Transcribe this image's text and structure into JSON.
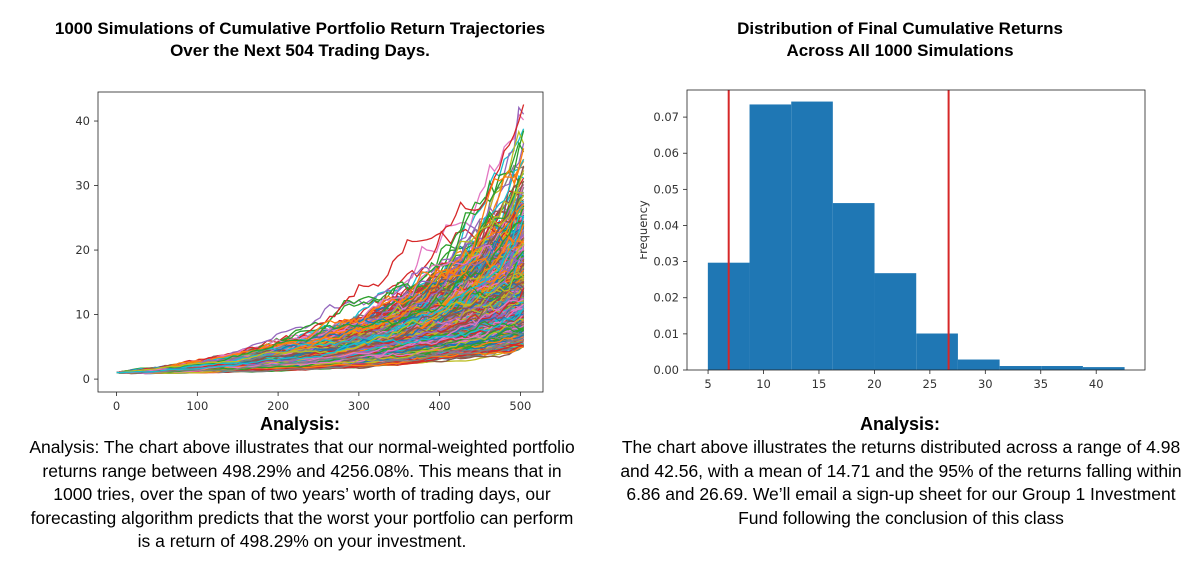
{
  "left_panel": {
    "title_line1": "1000 Simulations of Cumulative Portfolio Return Trajectories",
    "title_line2": "Over the Next 504 Trading Days.",
    "analysis_heading": "Analysis:",
    "analysis_body": "Analysis: The chart above illustrates that our normal-weighted portfolio returns range between 498.29% and 4256.08%. This means that in 1000 tries, over the span of two years’ worth of trading days, our forecasting algorithm predicts that the worst your portfolio can perform is a return of 498.29% on your investment."
  },
  "right_panel": {
    "title_line1": "Distribution of Final Cumulative Returns",
    "title_line2": "Across All 1000 Simulations",
    "analysis_heading": "Analysis:",
    "analysis_body": "The chart above illustrates the returns distributed across a range of 4.98 and 42.56, with a mean of 14.71 and the 95% of the returns falling within 6.86 and 26.69. We’ll email a sign-up sheet for our Group 1 Investment Fund following the conclusion of this class"
  },
  "chart_data": [
    {
      "type": "line",
      "title": "",
      "xlabel": "",
      "ylabel": "",
      "xlim": [
        -23,
        528
      ],
      "ylim": [
        -2,
        44.5
      ],
      "x_ticks": [
        0,
        100,
        200,
        300,
        400,
        500
      ],
      "y_ticks": [
        0,
        10,
        20,
        30,
        40
      ],
      "grid": false,
      "series_count": 1000,
      "steps": 504,
      "start_value": 1.0,
      "final_min": 4.98,
      "final_max": 42.56,
      "final_mean": 14.71,
      "colors": [
        "#1f77b4",
        "#ff7f0e",
        "#2ca02c",
        "#d62728",
        "#9467bd",
        "#8c564b",
        "#e377c2",
        "#7f7f7f",
        "#bcbd22",
        "#17becf"
      ]
    },
    {
      "type": "bar",
      "title": "",
      "xlabel": "",
      "ylabel": "Frequency",
      "xlim": [
        3.1,
        44.4
      ],
      "ylim": [
        0,
        0.0775
      ],
      "x_ticks": [
        5,
        10,
        15,
        20,
        25,
        30,
        35,
        40
      ],
      "y_ticks": [
        0.0,
        0.01,
        0.02,
        0.03,
        0.04,
        0.05,
        0.06,
        0.07
      ],
      "y_tick_labels": [
        "0.00",
        "0.01",
        "0.02",
        "0.03",
        "0.04",
        "0.05",
        "0.06",
        "0.07"
      ],
      "bin_edges": [
        4.98,
        8.74,
        12.5,
        16.25,
        20.01,
        23.77,
        27.53,
        31.29,
        35.04,
        38.8,
        42.56
      ],
      "values": [
        0.0297,
        0.0735,
        0.0743,
        0.0462,
        0.0268,
        0.0101,
        0.0029,
        0.0011,
        0.0011,
        0.0008
      ],
      "bar_color": "#1f77b4",
      "vlines": [
        6.86,
        26.69
      ],
      "vline_color": "#d62728",
      "grid": false
    }
  ]
}
